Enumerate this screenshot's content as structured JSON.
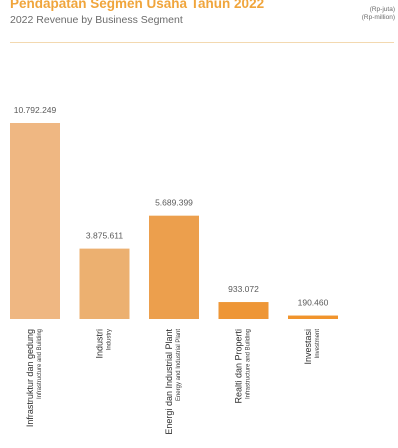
{
  "header": {
    "title": "Pendapatan Segmen Usaha Tahun 2022",
    "subtitle": "2022 Revenue by Business Segment",
    "unit_id": "(Rp-juta)",
    "unit_en": "(Rp-million)"
  },
  "chart_data": {
    "type": "bar",
    "title": "Pendapatan Segmen Usaha Tahun 2022",
    "subtitle": "2022 Revenue by Business Segment",
    "unit": "(Rp-juta) (Rp-million)",
    "categories": [
      "Infrastruktur dan gedung Infrastructure and Building",
      "Industri Industry",
      "Energi dan Industrial Plant Energy and Industrial Plant",
      "Realti dan Properti Infrastructure and Building",
      "Investasi Investment"
    ],
    "category_labels": [
      {
        "main": "Infrastruktur dan gedung",
        "sub": "Infrastructure and Building"
      },
      {
        "main": "Industri",
        "sub": "Industry"
      },
      {
        "main": "Energi dan Industrial Plant",
        "sub": "Energy and Industrial Plant"
      },
      {
        "main": "Realti dan Properti",
        "sub": "Infrastructure and Building"
      },
      {
        "main": "Investasi",
        "sub": "Investment"
      }
    ],
    "values": [
      10792249,
      3875611,
      5689399,
      933072,
      190460
    ],
    "value_labels": [
      "10.792.249",
      "3.875.611",
      "5.689.399",
      "933.072",
      "190.460"
    ],
    "colors": [
      "#efb782",
      "#ecb070",
      "#ec9f4d",
      "#ee9636",
      "#f1942c"
    ],
    "ylim": [
      0,
      10792249
    ],
    "grid": false,
    "legend": "none"
  }
}
